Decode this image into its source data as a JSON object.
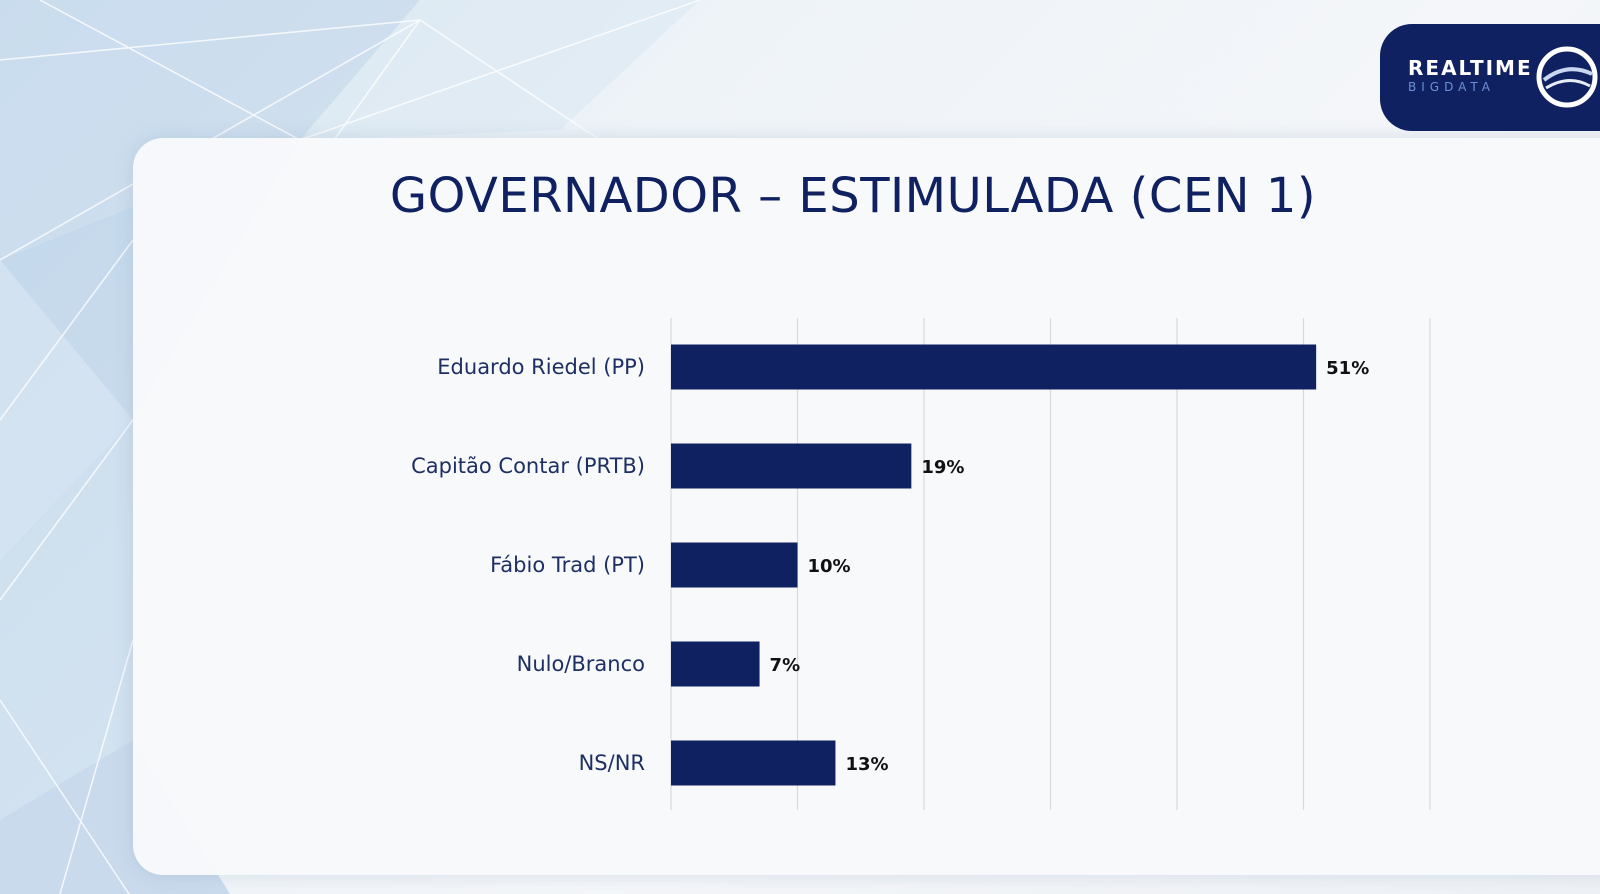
{
  "title": "GOVERNADOR – ESTIMULADA (CEN 1)",
  "logo": {
    "line1": "REALTIME",
    "line2": "BIGDATA"
  },
  "colors": {
    "bar": "#0f2160",
    "title": "#0f2160",
    "grid": "#d6d9de"
  },
  "chart_data": {
    "type": "bar",
    "orientation": "horizontal",
    "categories": [
      "Eduardo Riedel (PP)",
      "Capitão Contar (PRTB)",
      "Fábio Trad (PT)",
      "Nulo/Branco",
      "NS/NR"
    ],
    "values": [
      51,
      19,
      10,
      7,
      13
    ],
    "value_labels": [
      "51%",
      "19%",
      "10%",
      "7%",
      "13%"
    ],
    "xlim": [
      0,
      60
    ],
    "grid": true,
    "legend": "none"
  }
}
